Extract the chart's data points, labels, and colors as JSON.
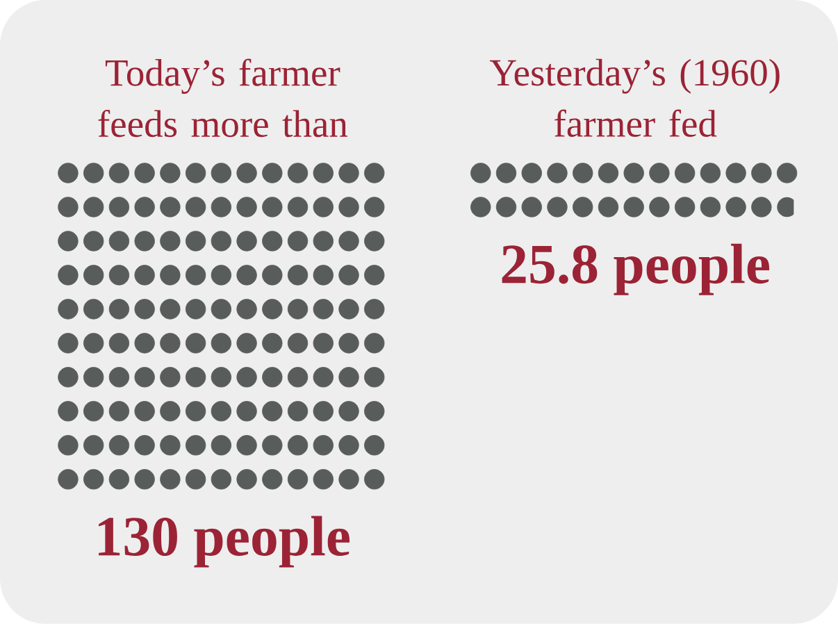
{
  "chart_data": {
    "type": "other",
    "categories": [
      "Today’s farmer feeds more than",
      "Yesterday’s (1960) farmer fed"
    ],
    "values": [
      130,
      25.8
    ],
    "value_labels": [
      "130 people",
      "25.8 people"
    ],
    "color": "#585d5b"
  }
}
